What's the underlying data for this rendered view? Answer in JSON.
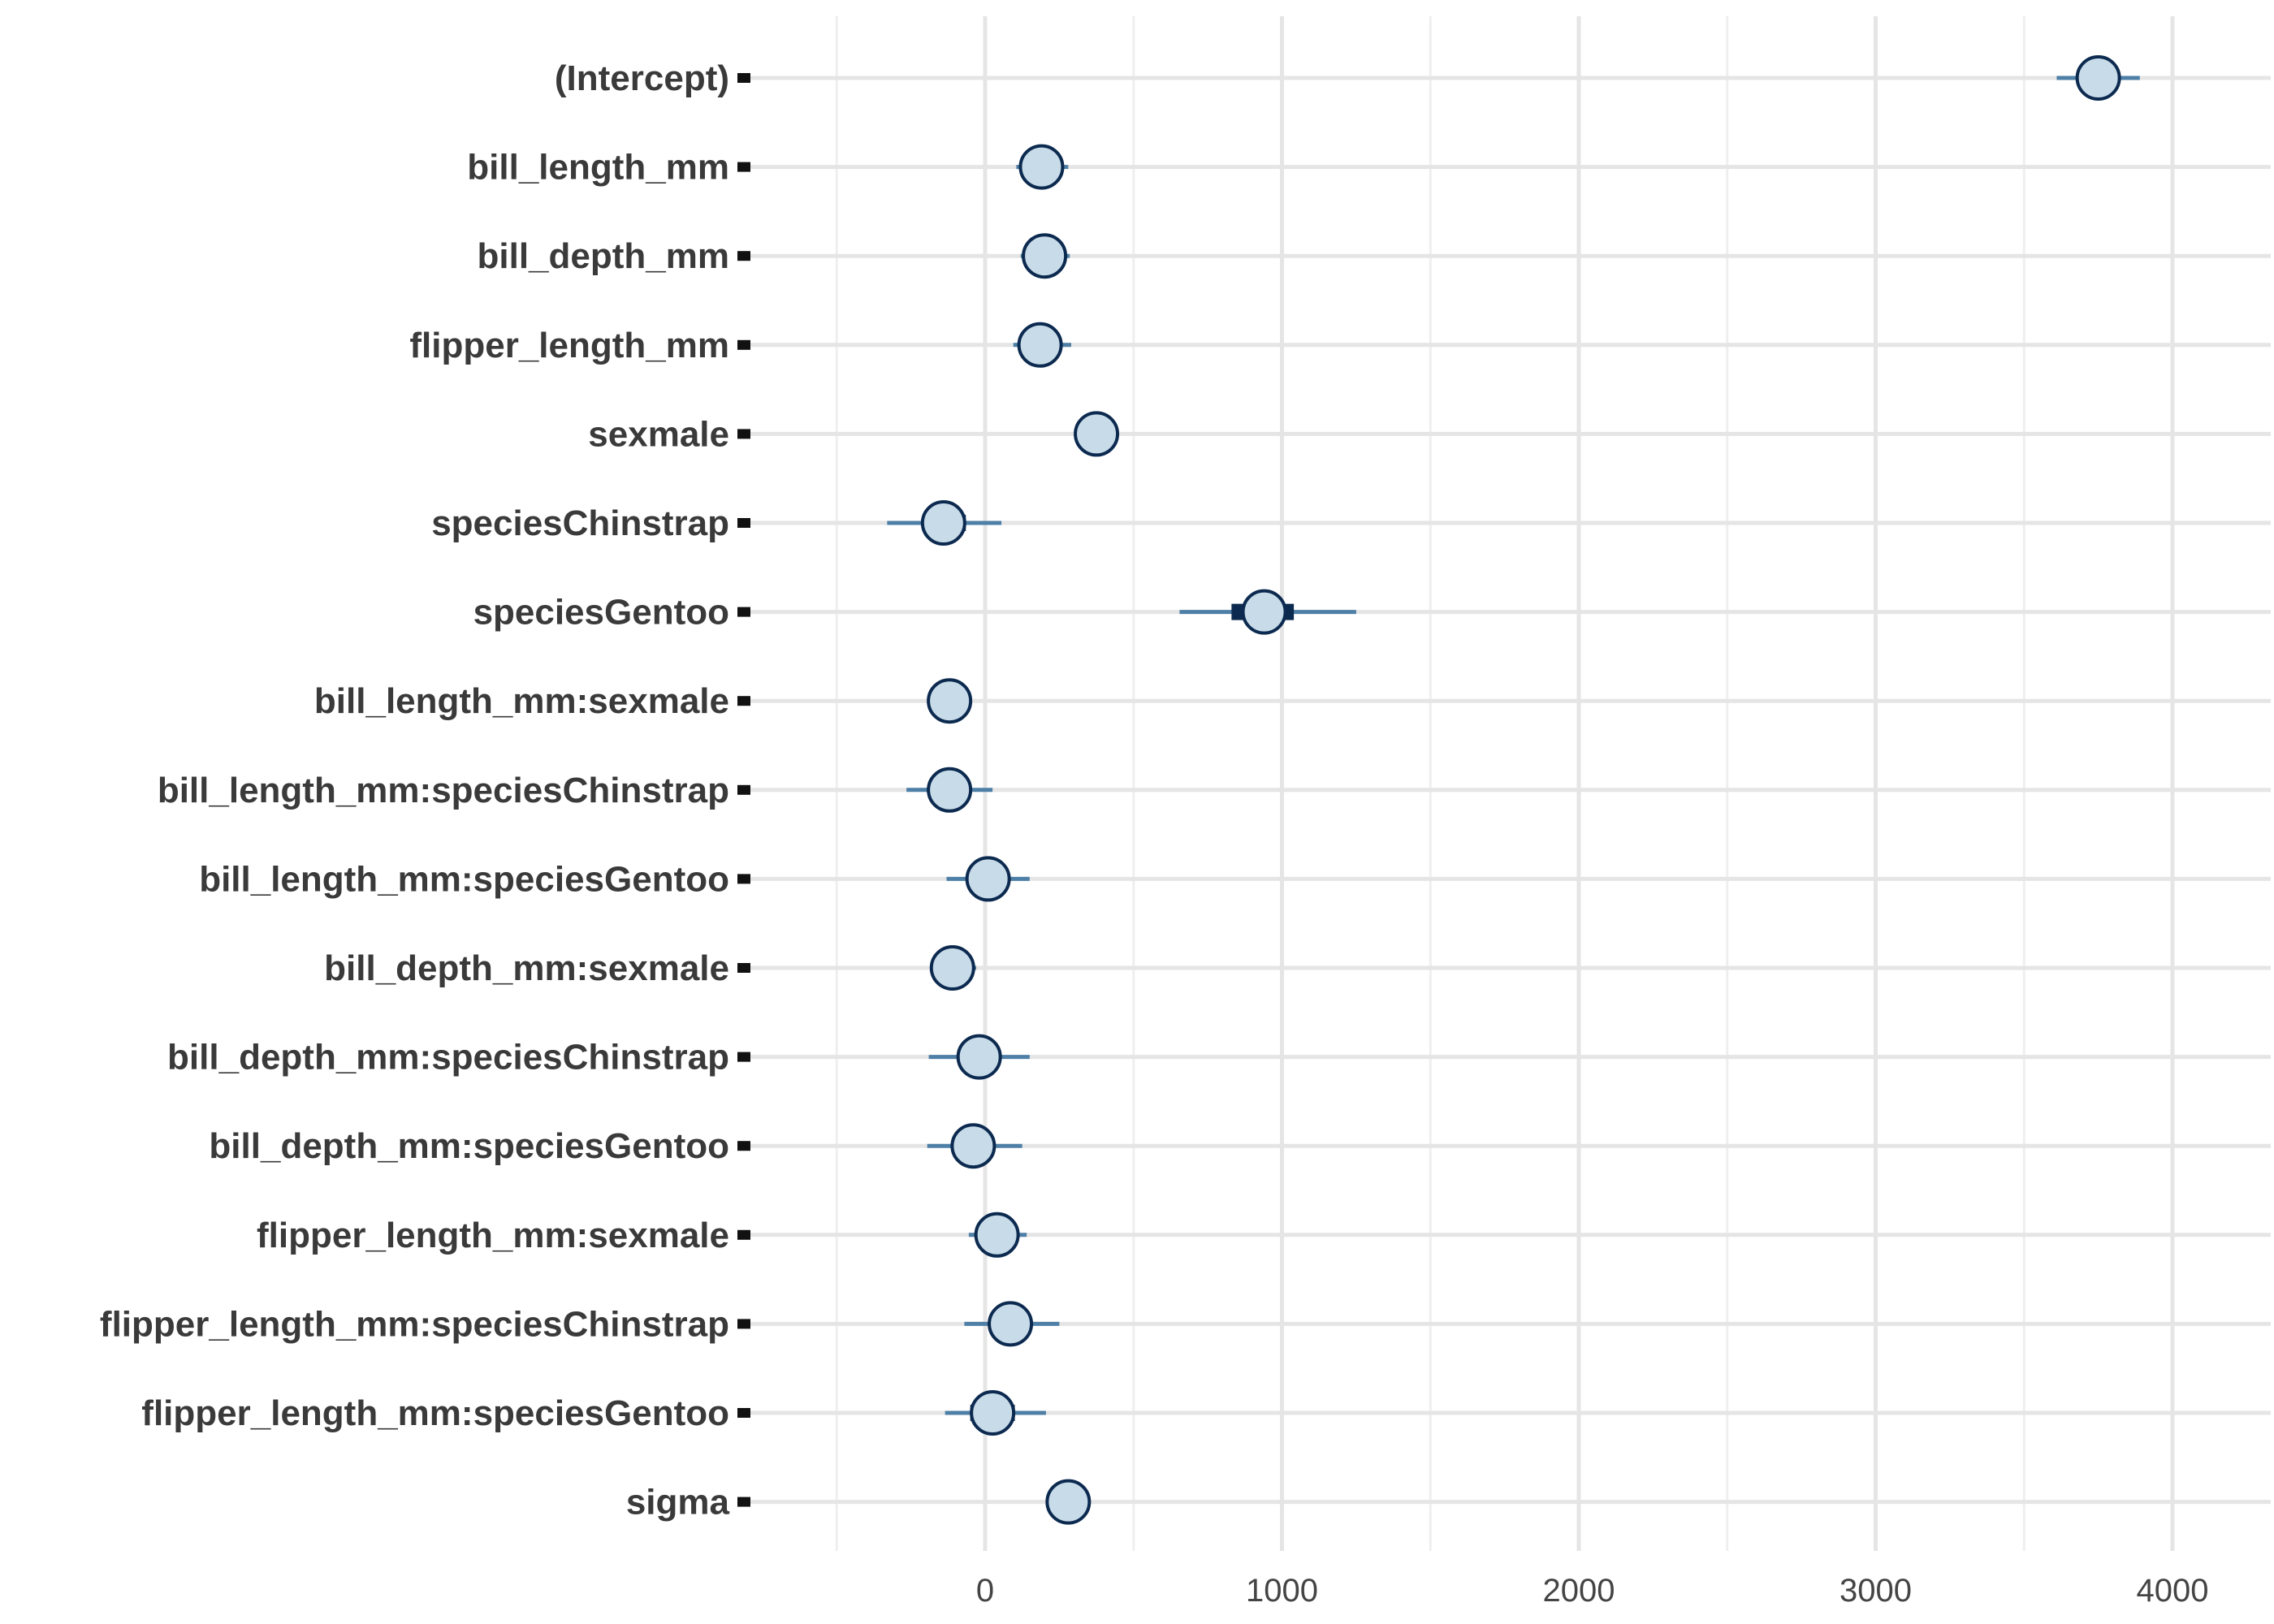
{
  "chart_data": {
    "type": "scatter",
    "title": "",
    "xlabel": "",
    "ylabel": "",
    "xlim": [
      -500,
      4300
    ],
    "x_ticks": [
      0,
      1000,
      2000,
      3000,
      4000
    ],
    "x_tick_labels": [
      "0",
      "1000",
      "2000",
      "3000",
      "4000"
    ],
    "grid": true,
    "legend": "none",
    "parameters": [
      {
        "label": "(Intercept)",
        "estimate": 3750,
        "inner": [
          3700,
          3800
        ],
        "outer": [
          3610,
          3890
        ]
      },
      {
        "label": "bill_length_mm",
        "estimate": 190,
        "inner": [
          160,
          225
        ],
        "outer": [
          105,
          280
        ]
      },
      {
        "label": "bill_depth_mm",
        "estimate": 200,
        "inner": [
          170,
          235
        ],
        "outer": [
          120,
          285
        ]
      },
      {
        "label": "flipper_length_mm",
        "estimate": 185,
        "inner": [
          140,
          230
        ],
        "outer": [
          95,
          290
        ]
      },
      {
        "label": "sexmale",
        "estimate": 375,
        "inner": [
          350,
          400
        ],
        "outer": [
          320,
          430
        ]
      },
      {
        "label": "speciesChinstrap",
        "estimate": -140,
        "inner": [
          -210,
          -65
        ],
        "outer": [
          -330,
          55
        ]
      },
      {
        "label": "speciesGentoo",
        "estimate": 940,
        "inner": [
          830,
          1040
        ],
        "outer": [
          655,
          1250
        ]
      },
      {
        "label": "bill_length_mm:sexmale",
        "estimate": -120,
        "inner": [
          -150,
          -90
        ],
        "outer": [
          -185,
          -50
        ]
      },
      {
        "label": "bill_length_mm:speciesChinstrap",
        "estimate": -120,
        "inner": [
          -185,
          -55
        ],
        "outer": [
          -265,
          25
        ]
      },
      {
        "label": "bill_length_mm:speciesGentoo",
        "estimate": 10,
        "inner": [
          -50,
          70
        ],
        "outer": [
          -130,
          150
        ]
      },
      {
        "label": "bill_depth_mm:sexmale",
        "estimate": -110,
        "inner": [
          -140,
          -80
        ],
        "outer": [
          -185,
          -30
        ]
      },
      {
        "label": "bill_depth_mm:speciesChinstrap",
        "estimate": -20,
        "inner": [
          -90,
          50
        ],
        "outer": [
          -190,
          150
        ]
      },
      {
        "label": "bill_depth_mm:speciesGentoo",
        "estimate": -40,
        "inner": [
          -110,
          30
        ],
        "outer": [
          -195,
          125
        ]
      },
      {
        "label": "flipper_length_mm:sexmale",
        "estimate": 40,
        "inner": [
          0,
          80
        ],
        "outer": [
          -55,
          140
        ]
      },
      {
        "label": "flipper_length_mm:speciesChinstrap",
        "estimate": 85,
        "inner": [
          20,
          155
        ],
        "outer": [
          -70,
          250
        ]
      },
      {
        "label": "flipper_length_mm:speciesGentoo",
        "estimate": 25,
        "inner": [
          -50,
          100
        ],
        "outer": [
          -135,
          205
        ]
      },
      {
        "label": "sigma",
        "estimate": 280,
        "inner": [
          265,
          295
        ],
        "outer": [
          250,
          310
        ]
      }
    ]
  },
  "colors": {
    "point_fill": "#c8dbe9",
    "point_stroke": "#0c2a4f",
    "outer_interval": "#4e7fa6",
    "inner_interval": "#0c2a4f",
    "grid_major": "#e5e5e5",
    "grid_minor": "#efefef",
    "label_text": "#3a3a3a",
    "tick_label_text": "#444444",
    "tick_mark": "#111111"
  }
}
